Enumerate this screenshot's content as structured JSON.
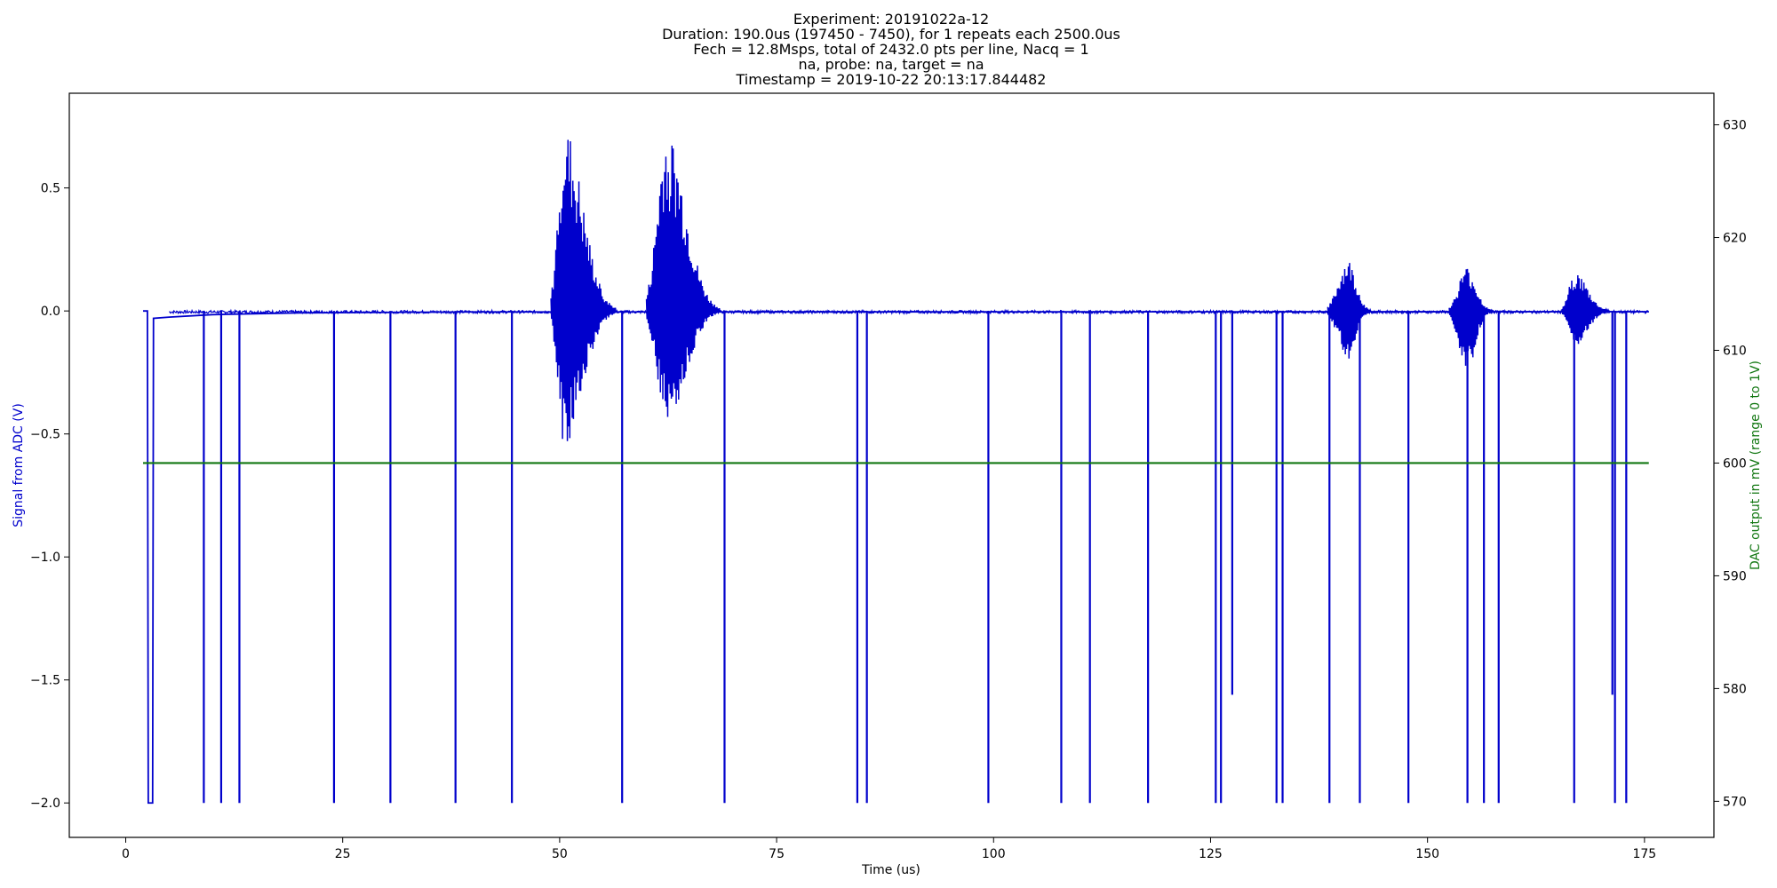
{
  "chart_data": {
    "type": "line",
    "title_lines": [
      "Experiment: 20191022a-12",
      "Duration: 190.0us (197450 - 7450), for 1 repeats each 2500.0us",
      "Fech = 12.8Msps, total of 2432.0 pts per line, Nacq = 1",
      "na, probe: na, target = na",
      "Timestamp = 2019-10-22 20:13:17.844482"
    ],
    "xlabel": "Time (us)",
    "ylabel_left": "Signal from ADC (V)",
    "ylabel_right": "DAC output in mV (range 0 to 1V)",
    "xlim": [
      -6.5,
      183
    ],
    "ylim_left": [
      -2.14,
      0.885
    ],
    "ylim_right": [
      566.8,
      632.8
    ],
    "x_ticks": [
      0,
      25,
      50,
      75,
      100,
      125,
      150,
      175
    ],
    "y_ticks_left": [
      -2.0,
      -1.5,
      -1.0,
      -0.5,
      0.0,
      0.5
    ],
    "y_tick_labels_left": [
      "−2.0",
      "−1.5",
      "−1.0",
      "−0.5",
      "0.0",
      "0.5"
    ],
    "y_ticks_right": [
      570,
      580,
      590,
      600,
      610,
      620,
      630
    ],
    "grid": false,
    "colors": {
      "adc": "#0000cc",
      "dac": "#117711",
      "ylabel_left": "#0000cc",
      "ylabel_right": "#117711"
    },
    "series": [
      {
        "axis": "left",
        "color": "#0000cc",
        "baseline": [
          [
            2.0,
            0.0
          ],
          [
            2.5,
            0.0
          ],
          [
            2.6,
            -2.0
          ],
          [
            3.1,
            -2.0
          ],
          [
            3.2,
            -0.03
          ],
          [
            5.0,
            -0.025
          ],
          [
            10.0,
            -0.015
          ],
          [
            20.0,
            -0.008
          ],
          [
            40.0,
            -0.004
          ],
          [
            175.5,
            -0.003
          ]
        ],
        "spikes": [
          {
            "x": 9.0,
            "y": -2.0
          },
          {
            "x": 11.0,
            "y": -2.0
          },
          {
            "x": 13.1,
            "y": -2.0
          },
          {
            "x": 24.0,
            "y": -2.0
          },
          {
            "x": 30.5,
            "y": -2.0
          },
          {
            "x": 38.0,
            "y": -2.0
          },
          {
            "x": 44.5,
            "y": -2.0
          },
          {
            "x": 57.2,
            "y": -2.0
          },
          {
            "x": 69.0,
            "y": -2.0
          },
          {
            "x": 84.3,
            "y": -2.0
          },
          {
            "x": 85.4,
            "y": -2.0
          },
          {
            "x": 99.4,
            "y": -2.0
          },
          {
            "x": 107.8,
            "y": -2.0
          },
          {
            "x": 111.1,
            "y": -2.0
          },
          {
            "x": 117.8,
            "y": -2.0
          },
          {
            "x": 125.6,
            "y": -2.0
          },
          {
            "x": 126.2,
            "y": -2.0
          },
          {
            "x": 127.5,
            "y": -1.56
          },
          {
            "x": 132.6,
            "y": -2.0
          },
          {
            "x": 133.3,
            "y": -2.0
          },
          {
            "x": 138.7,
            "y": -2.0
          },
          {
            "x": 142.2,
            "y": -2.0
          },
          {
            "x": 147.8,
            "y": -2.0
          },
          {
            "x": 154.6,
            "y": -2.0
          },
          {
            "x": 156.5,
            "y": -2.0
          },
          {
            "x": 158.2,
            "y": -2.0
          },
          {
            "x": 166.9,
            "y": -2.0
          },
          {
            "x": 171.3,
            "y": -1.56
          },
          {
            "x": 171.6,
            "y": -2.0
          },
          {
            "x": 172.9,
            "y": -2.0
          }
        ],
        "bursts": [
          {
            "start": 49.0,
            "end": 56.5,
            "peak": 50.5,
            "max": 0.75,
            "min": -0.55
          },
          {
            "start": 60.0,
            "end": 68.5,
            "peak": 62.3,
            "max": 0.735,
            "min": -0.46
          },
          {
            "start": 138.5,
            "end": 143.5,
            "peak": 140.8,
            "max": 0.21,
            "min": -0.2
          },
          {
            "start": 152.5,
            "end": 157.5,
            "peak": 154.5,
            "max": 0.18,
            "min": -0.24
          },
          {
            "start": 165.5,
            "end": 171.0,
            "peak": 167.0,
            "max": 0.16,
            "min": -0.15
          }
        ]
      },
      {
        "axis": "right",
        "color": "#117711",
        "x": [
          2.0,
          175.5
        ],
        "values": [
          600,
          600
        ]
      }
    ]
  }
}
